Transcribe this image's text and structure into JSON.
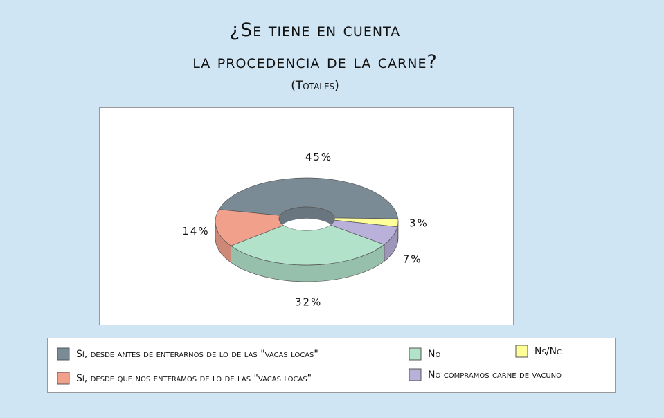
{
  "chart_data": {
    "type": "donut3d",
    "title": [
      "¿Se tiene en cuenta",
      "la procedencia de la carne?"
    ],
    "subtitle": "(Totales)",
    "categories": [
      "Sí, desde antes de enterarnos de lo de las \"vacas locas\"",
      "Ns/Nc",
      "No compramos carne de vacuno",
      "No",
      "Sí, desde que nos enteramos de lo de las \"vacas locas\""
    ],
    "values": [
      45,
      3,
      7,
      32,
      14
    ],
    "value_labels": [
      "45%",
      "3%",
      "7%",
      "32%",
      "14%"
    ],
    "colors": [
      "#7b8b95",
      "#ffff99",
      "#b9b1d9",
      "#b2e2ca",
      "#f1a18b"
    ]
  }
}
